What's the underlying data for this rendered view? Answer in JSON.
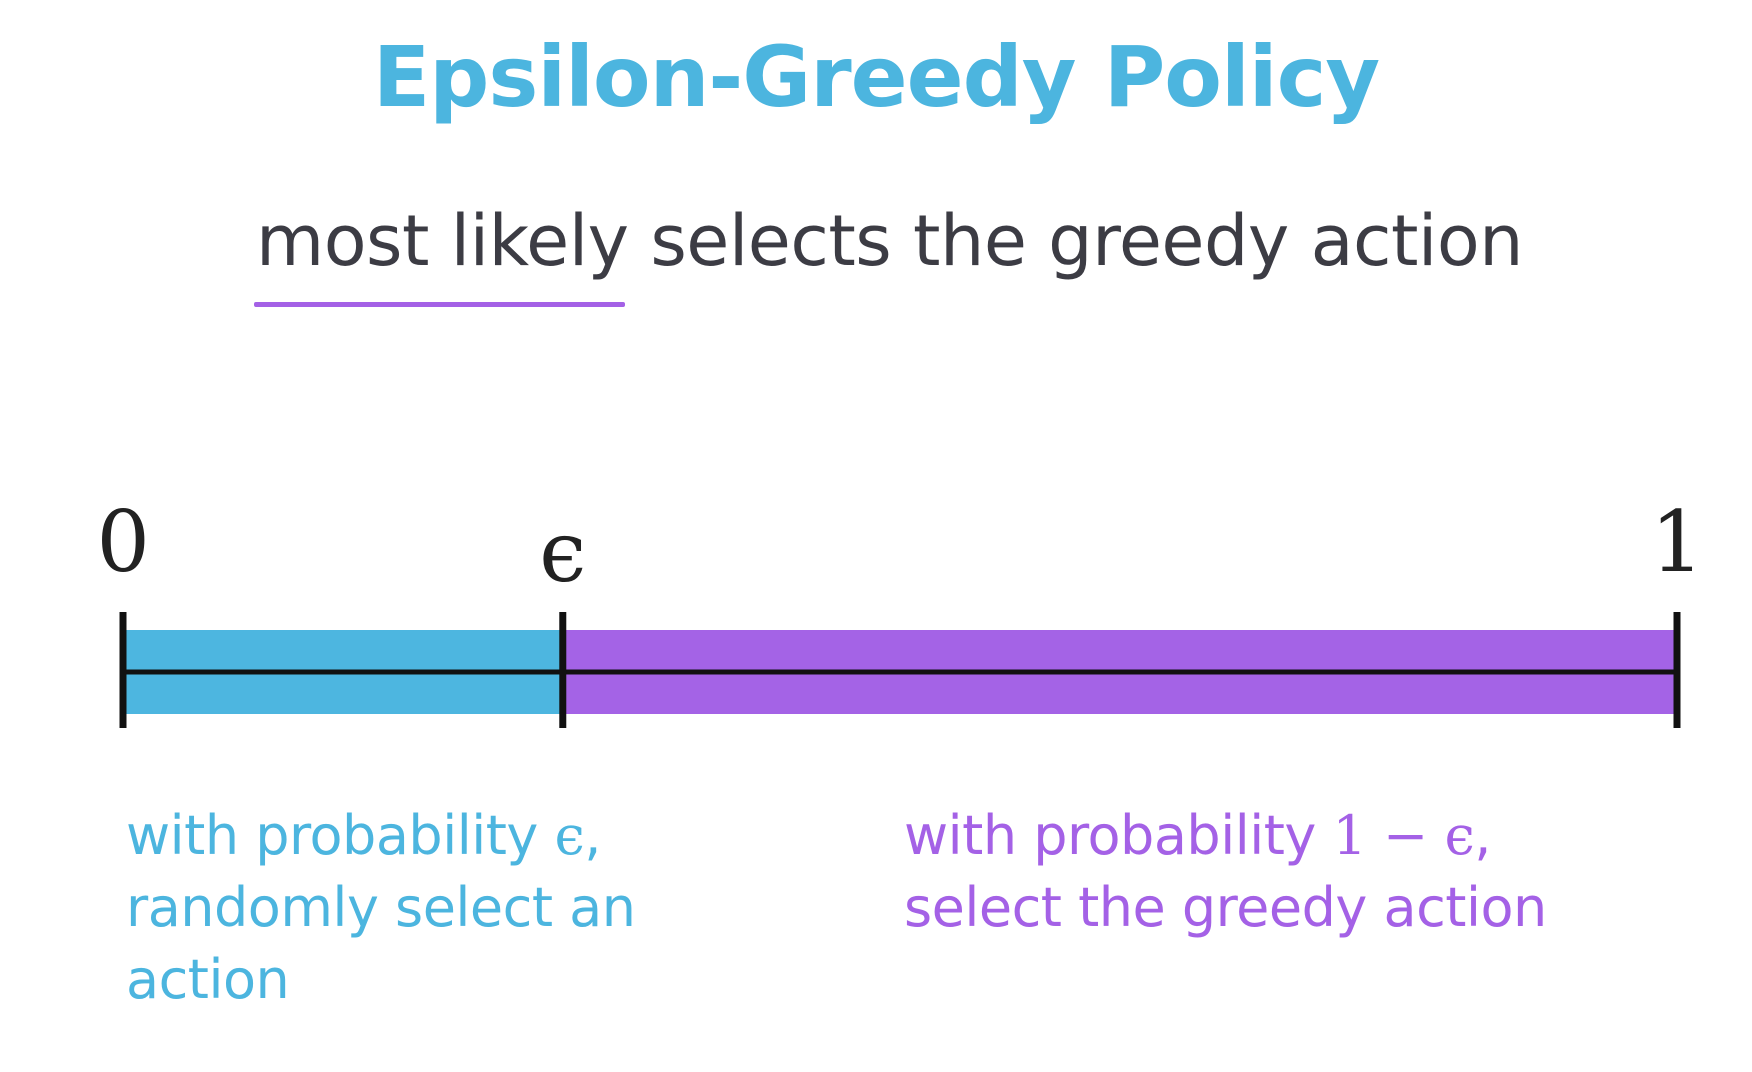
{
  "title": "Epsilon-Greedy Policy",
  "subtitle": "most likely selects the greedy action",
  "number_line": {
    "start_label": "0",
    "epsilon_label": "ϵ",
    "end_label": "1",
    "epsilon_fraction": 0.283,
    "segments": [
      {
        "name": "explore",
        "from": 0,
        "to": 0.283,
        "color": "#4db6e0"
      },
      {
        "name": "exploit",
        "from": 0.283,
        "to": 1,
        "color": "#a463e6"
      }
    ]
  },
  "captions": {
    "left": {
      "line1_text": "with probability ",
      "line1_math": "ϵ",
      "line1_tail": ",",
      "line2": "randomly select an",
      "line3": "action"
    },
    "right": {
      "line1_text": "with probability ",
      "line1_math": "1 − ϵ",
      "line1_tail": ",",
      "line2": "select the greedy action"
    }
  },
  "colors": {
    "explore": "#4cb5df",
    "exploit": "#a461e6",
    "axis": "#111111"
  }
}
